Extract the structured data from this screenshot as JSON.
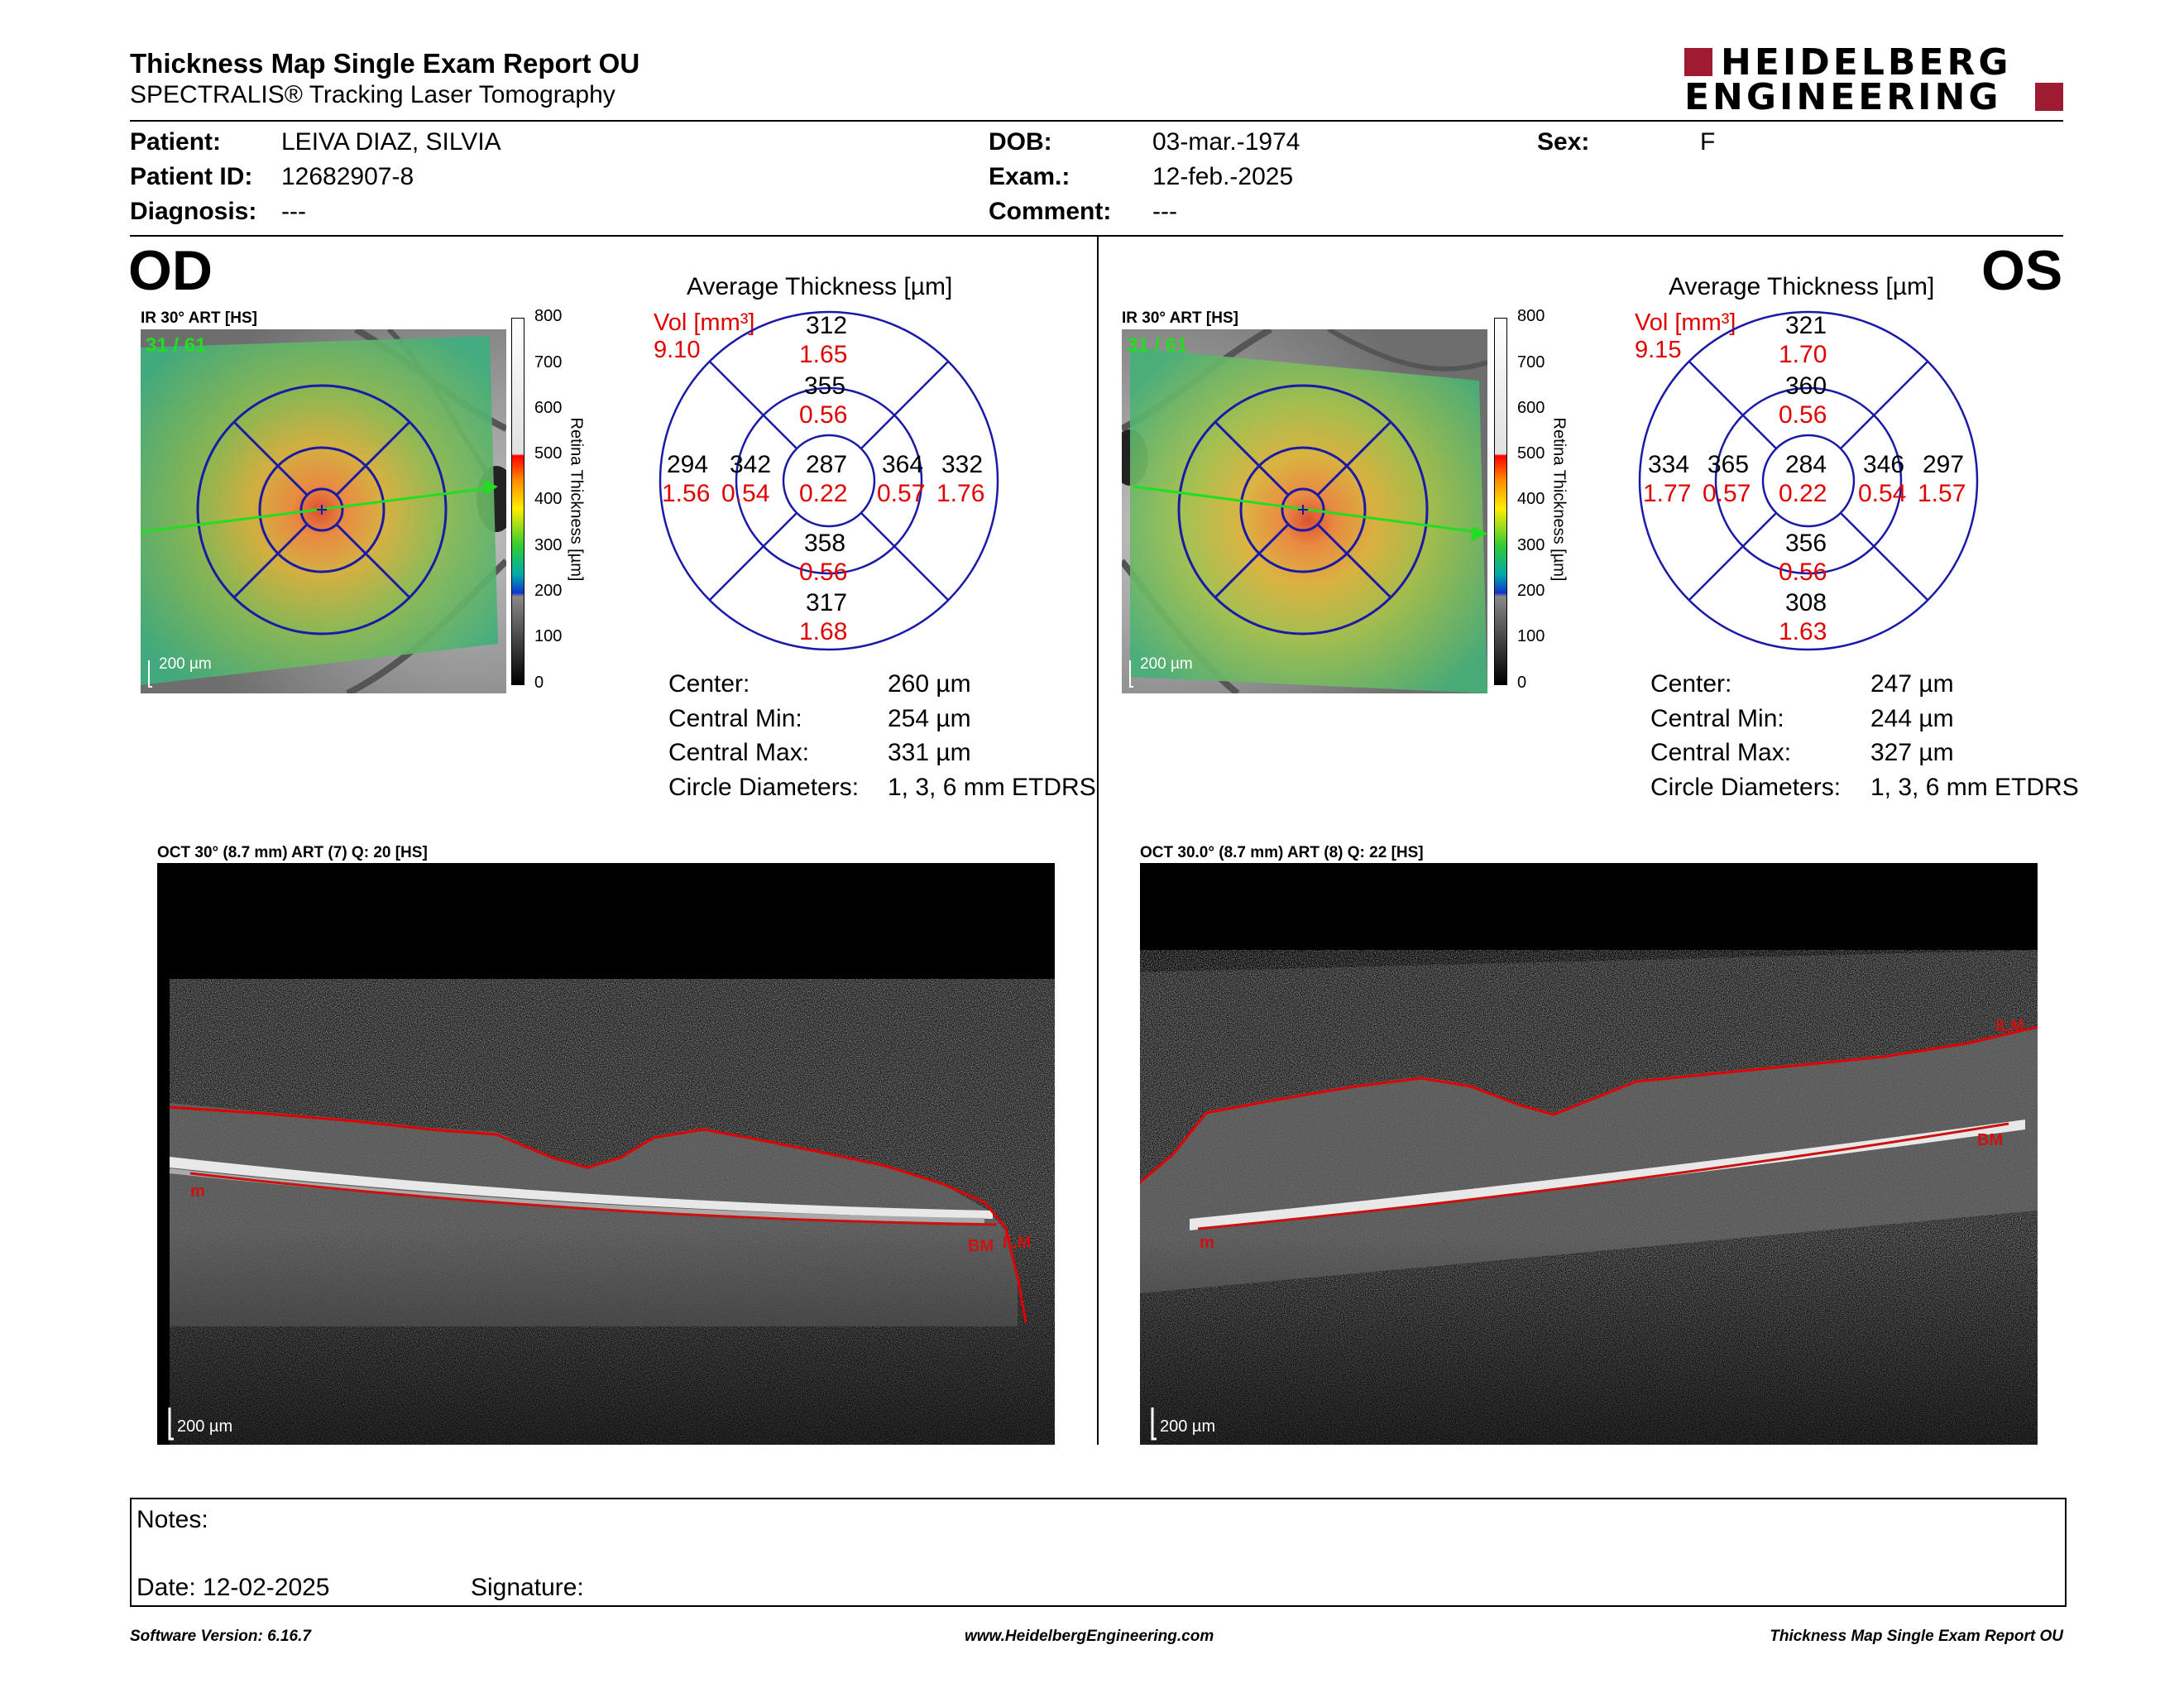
{
  "report": {
    "title": "Thickness Map Single Exam Report OU",
    "subtitle": "SPECTRALIS® Tracking Laser Tomography",
    "brand_line1": "HEIDELBERG",
    "brand_line2": "ENGINEERING"
  },
  "patient": {
    "patient_label": "Patient:",
    "patient_name": "LEIVA DIAZ, SILVIA",
    "id_label": "Patient ID:",
    "id_value": "12682907-8",
    "diagnosis_label": "Diagnosis:",
    "diagnosis_value": "---",
    "dob_label": "DOB:",
    "dob_value": "03-mar.-1974",
    "exam_label": "Exam.:",
    "exam_value": "12-feb.-2025",
    "comment_label": "Comment:",
    "comment_value": "---",
    "sex_label": "Sex:",
    "sex_value": "F"
  },
  "colorbar": {
    "title": "Retina Thickness [µm]",
    "ticks": [
      "800",
      "700",
      "600",
      "500",
      "400",
      "300",
      "200",
      "100",
      "0"
    ]
  },
  "od": {
    "eye": "OD",
    "ir_label": "IR 30° ART [HS]",
    "scan_index": "31 / 61",
    "scale": "200 µm",
    "avg_title": "Average Thickness [µm]",
    "vol_label": "Vol [mm³]",
    "vol_value": "9.10",
    "sectors": {
      "center": {
        "t": "287",
        "v": "0.22"
      },
      "inner_sup": {
        "t": "355",
        "v": "0.56"
      },
      "inner_inf": {
        "t": "358",
        "v": "0.56"
      },
      "inner_left": {
        "t": "342",
        "v": "0.54"
      },
      "inner_right": {
        "t": "364",
        "v": "0.57"
      },
      "outer_sup": {
        "t": "312",
        "v": "1.65"
      },
      "outer_inf": {
        "t": "317",
        "v": "1.68"
      },
      "outer_left": {
        "t": "294",
        "v": "1.56"
      },
      "outer_right": {
        "t": "332",
        "v": "1.76"
      }
    },
    "stats": [
      {
        "label": "Center:",
        "value": "260 µm"
      },
      {
        "label": "Central Min:",
        "value": "254 µm"
      },
      {
        "label": "Central Max:",
        "value": "331 µm"
      },
      {
        "label": "Circle Diameters:",
        "value": "1, 3, 6 mm ETDRS"
      }
    ],
    "oct_label": "OCT 30° (8.7 mm) ART (7) Q: 20 [HS]",
    "oct_scale": "200 µm",
    "oct_marks": {
      "ilm": "ILM",
      "bm": "BM",
      "m": "m"
    }
  },
  "os": {
    "eye": "OS",
    "ir_label": "IR 30° ART [HS]",
    "scan_index": "31 / 61",
    "scale": "200 µm",
    "avg_title": "Average Thickness [µm]",
    "vol_label": "Vol [mm³]",
    "vol_value": "9.15",
    "sectors": {
      "center": {
        "t": "284",
        "v": "0.22"
      },
      "inner_sup": {
        "t": "360",
        "v": "0.56"
      },
      "inner_inf": {
        "t": "356",
        "v": "0.56"
      },
      "inner_left": {
        "t": "365",
        "v": "0.57"
      },
      "inner_right": {
        "t": "346",
        "v": "0.54"
      },
      "outer_sup": {
        "t": "321",
        "v": "1.70"
      },
      "outer_inf": {
        "t": "308",
        "v": "1.63"
      },
      "outer_left": {
        "t": "334",
        "v": "1.77"
      },
      "outer_right": {
        "t": "297",
        "v": "1.57"
      }
    },
    "stats": [
      {
        "label": "Center:",
        "value": "247 µm"
      },
      {
        "label": "Central Min:",
        "value": "244 µm"
      },
      {
        "label": "Central Max:",
        "value": "327 µm"
      },
      {
        "label": "Circle Diameters:",
        "value": "1, 3, 6 mm ETDRS"
      }
    ],
    "oct_label": "OCT 30.0° (8.7 mm) ART (8) Q: 22 [HS]",
    "oct_scale": "200 µm",
    "oct_marks": {
      "ilm": "ILM",
      "bm": "BM",
      "m": "m"
    }
  },
  "notes": {
    "notes_label": "Notes:",
    "date_label": "Date: 12-02-2025",
    "signature_label": "Signature:"
  },
  "footer": {
    "software": "Software Version: 6.16.7",
    "website": "www.HeidelbergEngineering.com",
    "report_name": "Thickness Map Single Exam Report OU"
  },
  "colors": {
    "accent_red": "#e00000",
    "etdrs_blue": "#1a1aa6",
    "logo_red": "#9e1b32",
    "scan_green": "#22dd22"
  }
}
